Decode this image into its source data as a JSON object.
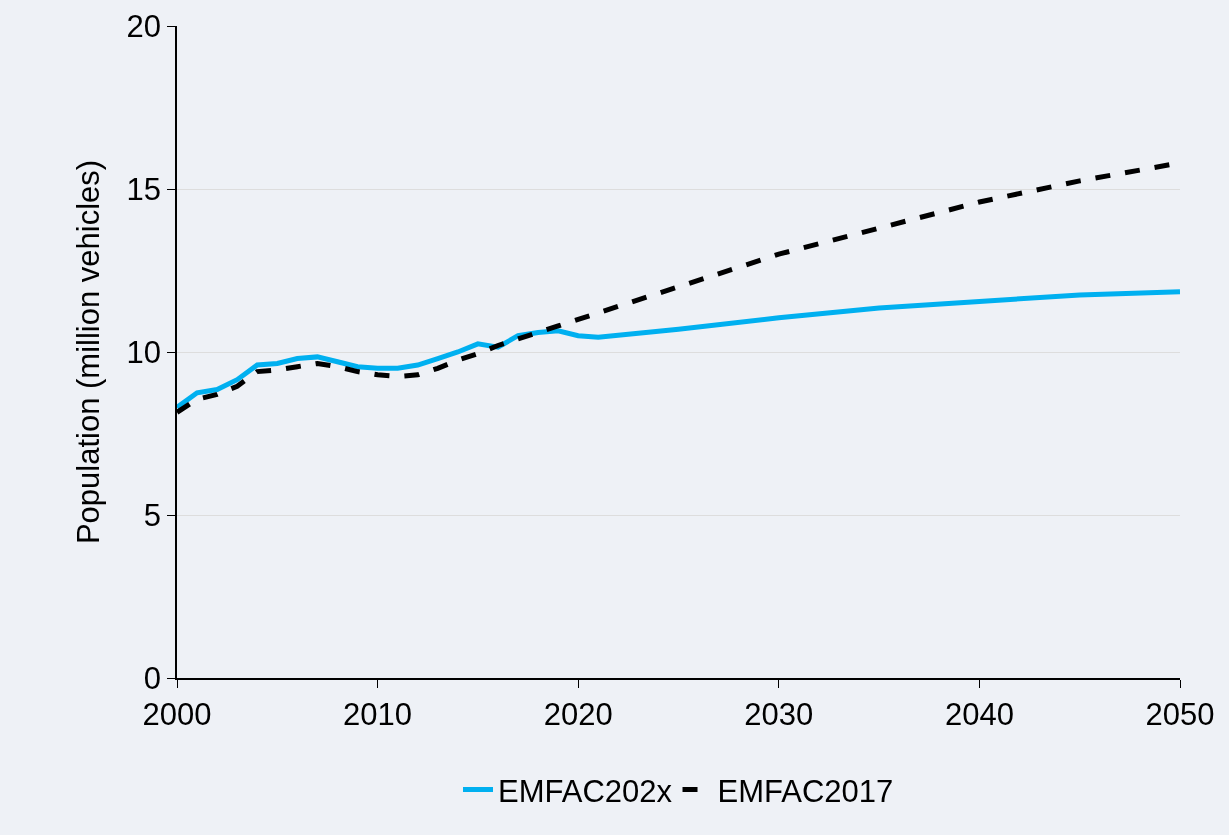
{
  "chart_data": {
    "type": "line",
    "ylabel": "Population (million vehicles)",
    "xlim": [
      2000,
      2050
    ],
    "xticks": [
      2000,
      2010,
      2020,
      2030,
      2040,
      2050
    ],
    "ylim": [
      0,
      20
    ],
    "yticks": [
      0,
      5,
      10,
      15,
      20
    ],
    "grid": "y",
    "legend": "bottom",
    "series": [
      {
        "name": "EMFAC202x",
        "color": "#00b0f0",
        "line_style": "solid",
        "x": [
          2000,
          2001,
          2002,
          2003,
          2004,
          2005,
          2006,
          2007,
          2008,
          2009,
          2010,
          2011,
          2012,
          2013,
          2014,
          2015,
          2016,
          2017,
          2018,
          2019,
          2020,
          2021,
          2025,
          2030,
          2035,
          2040,
          2045,
          2050
        ],
        "values": [
          8.3,
          8.75,
          8.85,
          9.15,
          9.6,
          9.65,
          9.8,
          9.85,
          9.7,
          9.55,
          9.5,
          9.5,
          9.6,
          9.8,
          10.0,
          10.25,
          10.15,
          10.5,
          10.6,
          10.65,
          10.5,
          10.45,
          10.7,
          11.05,
          11.35,
          11.55,
          11.75,
          11.85
        ]
      },
      {
        "name": "EMFAC2017",
        "color": "#000000",
        "line_style": "dashed",
        "x": [
          2000,
          2001,
          2002,
          2003,
          2004,
          2005,
          2006,
          2007,
          2008,
          2009,
          2010,
          2011,
          2012,
          2013,
          2014,
          2015,
          2016,
          2017,
          2018,
          2019,
          2020,
          2025,
          2030,
          2035,
          2040,
          2045,
          2050
        ],
        "values": [
          8.15,
          8.55,
          8.7,
          8.95,
          9.4,
          9.45,
          9.55,
          9.65,
          9.55,
          9.4,
          9.3,
          9.25,
          9.3,
          9.5,
          9.75,
          9.95,
          10.2,
          10.4,
          10.6,
          10.8,
          11.0,
          12.0,
          13.0,
          13.8,
          14.6,
          15.25,
          15.8
        ]
      }
    ]
  }
}
